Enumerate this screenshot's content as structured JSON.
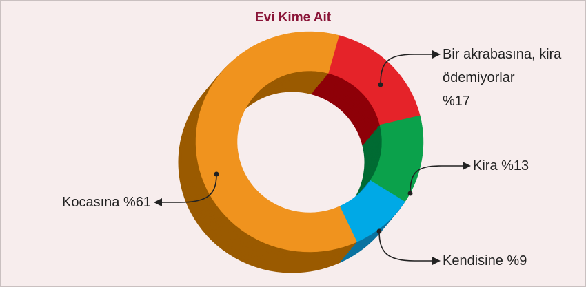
{
  "chart_data": {
    "type": "donut",
    "title": "Evi Kime Ait",
    "categories": [
      "Bir akrabasına, kira ödemiyorlar",
      "Kira",
      "Kendisine",
      "Kocasına"
    ],
    "values": [
      17,
      13,
      9,
      61
    ],
    "value_labels": [
      "%17",
      "%13",
      "%9",
      "%61"
    ],
    "colors": [
      "#e52329",
      "#0ba14b",
      "#00a9e6",
      "#f0931e"
    ],
    "side_colors": [
      "#8e0008",
      "#006b33",
      "#0b73a0",
      "#9a5a00"
    ]
  }
}
